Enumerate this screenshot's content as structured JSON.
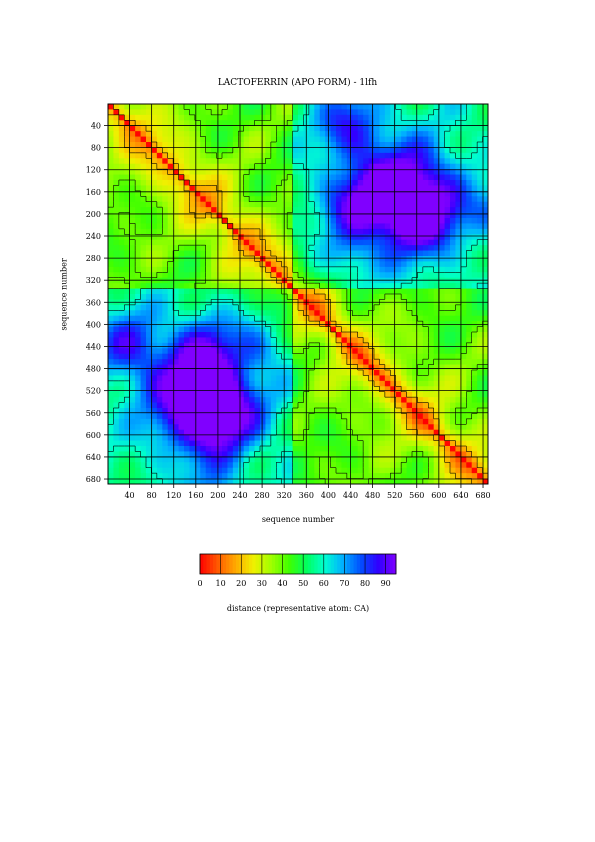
{
  "chart_data": {
    "type": "heatmap",
    "title": "LACTOFERRIN (APO FORM) - 1lfh",
    "xlabel": "sequence number",
    "ylabel": "sequence number",
    "x_range": [
      1,
      689
    ],
    "y_range": [
      1,
      689
    ],
    "y_inverted": true,
    "x_ticks": [
      40,
      80,
      120,
      160,
      200,
      240,
      280,
      320,
      360,
      400,
      440,
      480,
      520,
      560,
      600,
      640,
      680
    ],
    "y_ticks": [
      40,
      80,
      120,
      160,
      200,
      240,
      280,
      320,
      360,
      400,
      440,
      480,
      520,
      560,
      600,
      640,
      680
    ],
    "grid": true,
    "contours": true,
    "colorbar": {
      "label": "distance (representative atom: CA)",
      "min": 0,
      "max": 95,
      "ticks": [
        0,
        10,
        20,
        30,
        40,
        50,
        60,
        70,
        80,
        90
      ],
      "colors": [
        "#ff0000",
        "#ff5a00",
        "#ffaa00",
        "#f0f000",
        "#a0ff00",
        "#40ff00",
        "#00ff60",
        "#00ffd0",
        "#00b0ff",
        "#0050ff",
        "#3000ff",
        "#8000ff"
      ],
      "placement": "bottom"
    },
    "values_description_visible": "distance map of CA-CA distances; diagonal near 0 (red), domain blocks 10-30, distant regions 60-85 (blue)"
  }
}
